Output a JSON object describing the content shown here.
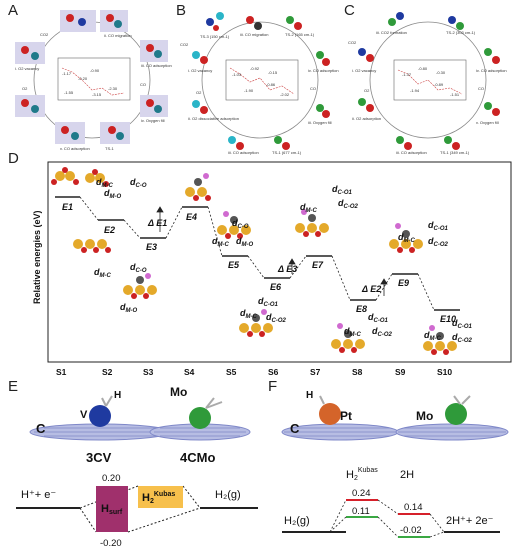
{
  "panels": {
    "A": {
      "label": "A"
    },
    "B": {
      "label": "B"
    },
    "C": {
      "label": "C"
    },
    "D": {
      "label": "D"
    },
    "E": {
      "label": "E"
    },
    "F": {
      "label": "F"
    }
  },
  "panel_a": {
    "stage_labels": [
      "i. O2 vacancy",
      "ii. CO migration",
      "iii. CO adsorption",
      "iv. Oxygen fill",
      "v. CO adsorption",
      "TS-1"
    ],
    "tag_co2": "CO2",
    "tag_co": "CO",
    "tag_o2": "O2",
    "energies": [
      "-1.17",
      "-0.20",
      "-0.90",
      "-1.55",
      "-3.15",
      "-2.30"
    ]
  },
  "panel_b": {
    "stage_labels": [
      "TS-3 (150 cm-1)",
      "iii. CO migration",
      "TS-2 (165 cm-1)",
      "i. O2 vacancy",
      "iv. CO adsorption",
      "ii. O2 dissociative adsorption",
      "iii. Oxygen fill",
      "iii. CO adsorption",
      "TS-1 (677 cm-1)"
    ],
    "tag_co2": "CO2",
    "tag_co": "CO",
    "tag_o2": "O2",
    "energies": [
      "-1.03",
      "-0.92",
      "-1.90",
      "-0.15",
      "-0.86",
      "-2.02"
    ]
  },
  "panel_c": {
    "stage_labels": [
      "iii. CO2 formation",
      "TS-2 (303 cm-1)",
      "i. O2 vacancy",
      "iv. CO adsorption",
      "ii. O2 adsorption",
      "v. Oxygen fill",
      "iii. CO adsorption",
      "TS-1 (349 cm-1)"
    ],
    "tag_co2": "CO2",
    "tag_co": "CO",
    "tag_o2": "O2",
    "energies": [
      "-1.37",
      "-0.80",
      "-1.94",
      "-0.30",
      "-0.89",
      "-1.51"
    ]
  },
  "panel_d": {
    "ylabel": "Relative energies (eV)",
    "xticks": [
      "S1",
      "S2",
      "S3",
      "S4",
      "S5",
      "S6",
      "S7",
      "S8",
      "S9",
      "S10"
    ],
    "states": [
      "E1",
      "E2",
      "E3",
      "E4",
      "E5",
      "E6",
      "E7",
      "E8",
      "E9",
      "E10"
    ],
    "barriers": [
      "Δ E1",
      "Δ E2",
      "Δ E3"
    ],
    "d_labels": {
      "dM_C": "d",
      "dC_O": "d",
      "dM_O": "d",
      "dC_O1": "d",
      "dC_O2": "d"
    },
    "sub_labels": {
      "MC": "M-C",
      "CO": "C-O",
      "MO": "M-O",
      "CO1": "C-O1",
      "CO2": "C-O2"
    }
  },
  "panel_e": {
    "atom_c": "C",
    "atom_v": "V",
    "atom_h": "H",
    "atom_mo": "Mo",
    "name_1": "3CV",
    "name_2": "4CMo",
    "reactant": "H⁺+ e⁻",
    "h_surf": "H",
    "h_surf_sub": "surf",
    "h2_kubas": "H",
    "h2_kubas_sub": "2",
    "h2_kubas_sup": "Kubas",
    "product": "H₂(g)",
    "value_top": "0.20",
    "value_bottom": "-0.20"
  },
  "panel_f": {
    "atom_h": "H",
    "atom_pt": "Pt",
    "atom_c": "C",
    "atom_mo": "Mo",
    "h2_kubas": "H",
    "h2_kubas_sub": "2",
    "h2_kubas_sup": "Kubas",
    "label_2h": "2H",
    "reactant": "H₂(g)",
    "product": "2H⁺+ 2e⁻",
    "values": [
      "0.24",
      "0.14",
      "0.11",
      "-0.02"
    ]
  },
  "colors": {
    "surf_box": "#a0306c",
    "kubas_box": "#f7c04c",
    "red_line": "#d6202a",
    "green_line": "#3aa843",
    "vanadium": "#1f3aa0",
    "molybdenum": "#2f9a3a",
    "platinum": "#d4642a",
    "graphene": "#7f88c8"
  }
}
